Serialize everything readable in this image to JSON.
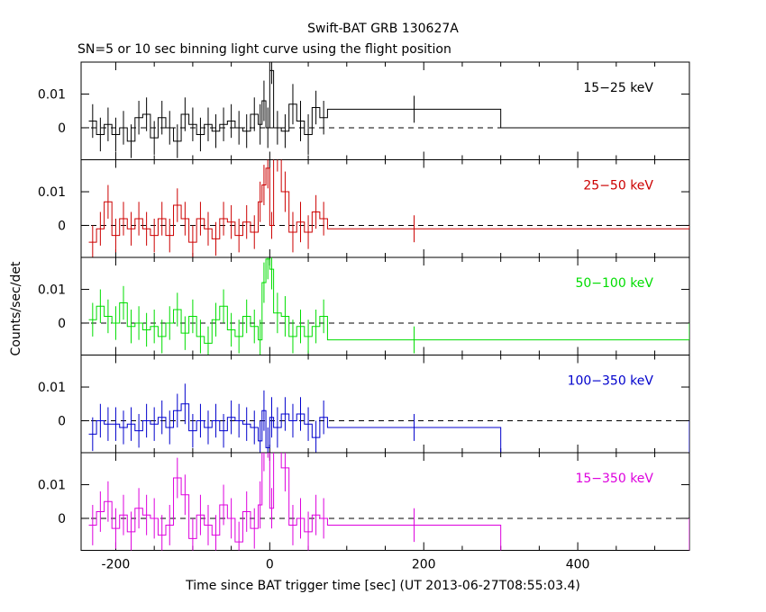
{
  "chart_data": {
    "type": "line",
    "title": "Swift-BAT GRB 130627A",
    "subtitle": "SN=5 or 10 sec binning light curve using the flight position",
    "xlabel": "Time since BAT trigger time [sec] (UT 2013-06-27T08:55:03.4)",
    "ylabel": "Counts/sec/det",
    "xlim": [
      -245,
      545
    ],
    "ylim": [
      -0.0095,
      0.0195
    ],
    "x_ticks": [
      -200,
      0,
      200,
      400
    ],
    "x_tick_labels": [
      "-200",
      "0",
      "200",
      "400"
    ],
    "y_ticks": [
      0.01,
      0
    ],
    "y_tick_labels": [
      "0.01",
      "0"
    ],
    "zero_line": "dashed",
    "panels": [
      {
        "name": "15-25 keV",
        "label": "15−25 keV",
        "color": "#000000",
        "edges": [
          -235,
          -225,
          -215,
          -205,
          -195,
          -185,
          -175,
          -165,
          -155,
          -145,
          -135,
          -125,
          -115,
          -105,
          -95,
          -85,
          -75,
          -65,
          -55,
          -45,
          -35,
          -25,
          -15,
          -10,
          -5,
          0,
          5,
          15,
          25,
          35,
          45,
          55,
          65,
          75,
          300,
          545
        ],
        "values": [
          0.002,
          -0.002,
          0.001,
          -0.002,
          0.0,
          -0.004,
          0.003,
          0.004,
          -0.003,
          0.003,
          0.0,
          -0.004,
          0.004,
          0.001,
          -0.002,
          0.001,
          -0.001,
          0.001,
          0.002,
          0.0,
          -0.001,
          0.004,
          0.001,
          0.008,
          0.0,
          0.017,
          0.0,
          -0.001,
          0.007,
          0.002,
          -0.002,
          0.006,
          0.003,
          0.0055,
          0.0,
          null
        ],
        "errors": [
          0.005,
          0.005,
          0.005,
          0.005,
          0.005,
          0.005,
          0.005,
          0.005,
          0.005,
          0.005,
          0.005,
          0.005,
          0.005,
          0.005,
          0.005,
          0.005,
          0.005,
          0.005,
          0.005,
          0.005,
          0.005,
          0.005,
          0.006,
          0.006,
          0.006,
          0.004,
          0.005,
          0.005,
          0.006,
          0.006,
          0.006,
          0.005,
          0.005,
          0.004,
          0.0,
          null
        ]
      },
      {
        "name": "25-50 keV",
        "label": "25−50 keV",
        "color": "#cc0000",
        "edges": [
          -235,
          -225,
          -215,
          -205,
          -195,
          -185,
          -175,
          -165,
          -155,
          -145,
          -135,
          -125,
          -115,
          -105,
          -95,
          -85,
          -75,
          -65,
          -55,
          -45,
          -35,
          -25,
          -15,
          -10,
          -5,
          0,
          5,
          15,
          25,
          35,
          45,
          55,
          65,
          75,
          300,
          545
        ],
        "values": [
          -0.005,
          -0.001,
          0.007,
          -0.003,
          0.002,
          -0.001,
          0.002,
          -0.001,
          -0.003,
          0.002,
          -0.003,
          0.006,
          0.002,
          -0.005,
          0.002,
          -0.001,
          -0.004,
          0.002,
          0.001,
          -0.003,
          0.001,
          -0.002,
          0.007,
          0.012,
          0.017,
          0.0,
          0.022,
          0.01,
          -0.002,
          0.001,
          -0.002,
          0.004,
          0.002,
          -0.001,
          -0.001,
          0.0
        ],
        "errors": [
          0.005,
          0.005,
          0.005,
          0.005,
          0.005,
          0.005,
          0.005,
          0.005,
          0.005,
          0.005,
          0.005,
          0.005,
          0.005,
          0.005,
          0.005,
          0.005,
          0.005,
          0.005,
          0.005,
          0.005,
          0.005,
          0.005,
          0.006,
          0.006,
          0.006,
          0.004,
          0.006,
          0.006,
          0.006,
          0.006,
          0.005,
          0.005,
          0.005,
          0.004,
          0.0,
          0.0
        ]
      },
      {
        "name": "50-100 keV",
        "label": "50−100 keV",
        "color": "#00dd00",
        "edges": [
          -235,
          -225,
          -215,
          -205,
          -195,
          -185,
          -175,
          -165,
          -155,
          -145,
          -135,
          -125,
          -115,
          -105,
          -95,
          -85,
          -75,
          -65,
          -55,
          -45,
          -35,
          -25,
          -15,
          -10,
          -5,
          0,
          5,
          15,
          25,
          35,
          45,
          55,
          65,
          75,
          300,
          545
        ],
        "values": [
          0.001,
          0.005,
          0.002,
          0.0,
          0.006,
          -0.001,
          0.0,
          -0.002,
          -0.001,
          -0.004,
          0.0,
          0.004,
          -0.003,
          0.002,
          -0.004,
          -0.006,
          0.001,
          0.005,
          -0.002,
          -0.004,
          0.002,
          -0.001,
          -0.005,
          0.012,
          0.019,
          0.016,
          0.003,
          0.002,
          -0.004,
          -0.001,
          -0.004,
          -0.001,
          0.002,
          -0.005,
          -0.005,
          0.0
        ],
        "errors": [
          0.005,
          0.005,
          0.005,
          0.005,
          0.005,
          0.005,
          0.005,
          0.005,
          0.005,
          0.005,
          0.005,
          0.005,
          0.005,
          0.005,
          0.005,
          0.005,
          0.005,
          0.005,
          0.005,
          0.005,
          0.005,
          0.005,
          0.006,
          0.006,
          0.006,
          0.006,
          0.006,
          0.006,
          0.005,
          0.005,
          0.005,
          0.005,
          0.005,
          0.004,
          0.0,
          0.0
        ]
      },
      {
        "name": "100-350 keV",
        "label": "100−350 keV",
        "color": "#0000cc",
        "edges": [
          -235,
          -225,
          -215,
          -205,
          -195,
          -185,
          -175,
          -165,
          -155,
          -145,
          -135,
          -125,
          -115,
          -105,
          -95,
          -85,
          -75,
          -65,
          -55,
          -45,
          -35,
          -25,
          -15,
          -10,
          -5,
          0,
          5,
          15,
          25,
          35,
          45,
          55,
          65,
          75,
          300,
          545
        ],
        "values": [
          -0.004,
          0.0,
          -0.001,
          -0.001,
          -0.002,
          -0.001,
          -0.003,
          0.0,
          -0.001,
          0.001,
          -0.002,
          0.003,
          0.005,
          -0.003,
          0.0,
          -0.002,
          0.0,
          -0.003,
          0.001,
          0.0,
          -0.001,
          -0.002,
          -0.006,
          0.003,
          -0.008,
          0.001,
          -0.002,
          0.002,
          0.0,
          0.002,
          -0.001,
          -0.005,
          0.001,
          -0.002,
          -0.01,
          0.0
        ],
        "errors": [
          0.005,
          0.005,
          0.005,
          0.005,
          0.005,
          0.005,
          0.005,
          0.005,
          0.005,
          0.005,
          0.005,
          0.005,
          0.006,
          0.005,
          0.005,
          0.005,
          0.005,
          0.005,
          0.005,
          0.005,
          0.005,
          0.005,
          0.006,
          0.006,
          0.006,
          0.006,
          0.006,
          0.005,
          0.005,
          0.005,
          0.005,
          0.005,
          0.005,
          0.004,
          0.0,
          0.0
        ]
      },
      {
        "name": "15-350 keV",
        "label": "15−350 keV",
        "color": "#dd00dd",
        "edges": [
          -235,
          -225,
          -215,
          -205,
          -195,
          -185,
          -175,
          -165,
          -155,
          -145,
          -135,
          -125,
          -115,
          -105,
          -95,
          -85,
          -75,
          -65,
          -55,
          -45,
          -35,
          -25,
          -15,
          -10,
          -5,
          0,
          5,
          15,
          25,
          35,
          45,
          55,
          65,
          75,
          300,
          545
        ],
        "values": [
          -0.002,
          0.002,
          0.005,
          -0.003,
          0.001,
          -0.004,
          0.003,
          0.001,
          0.0,
          -0.005,
          -0.002,
          0.012,
          0.007,
          -0.006,
          0.001,
          -0.002,
          -0.005,
          0.004,
          0.0,
          -0.007,
          0.002,
          -0.003,
          0.004,
          0.021,
          0.025,
          0.003,
          0.03,
          0.015,
          -0.002,
          0.0,
          -0.004,
          0.001,
          0.0,
          -0.002,
          -0.015,
          0.0
        ],
        "errors": [
          0.006,
          0.006,
          0.006,
          0.006,
          0.006,
          0.006,
          0.006,
          0.006,
          0.006,
          0.006,
          0.006,
          0.006,
          0.006,
          0.006,
          0.006,
          0.006,
          0.006,
          0.006,
          0.006,
          0.006,
          0.006,
          0.006,
          0.007,
          0.007,
          0.007,
          0.006,
          0.007,
          0.007,
          0.006,
          0.006,
          0.006,
          0.006,
          0.006,
          0.005,
          0.0,
          0.0
        ]
      }
    ]
  }
}
